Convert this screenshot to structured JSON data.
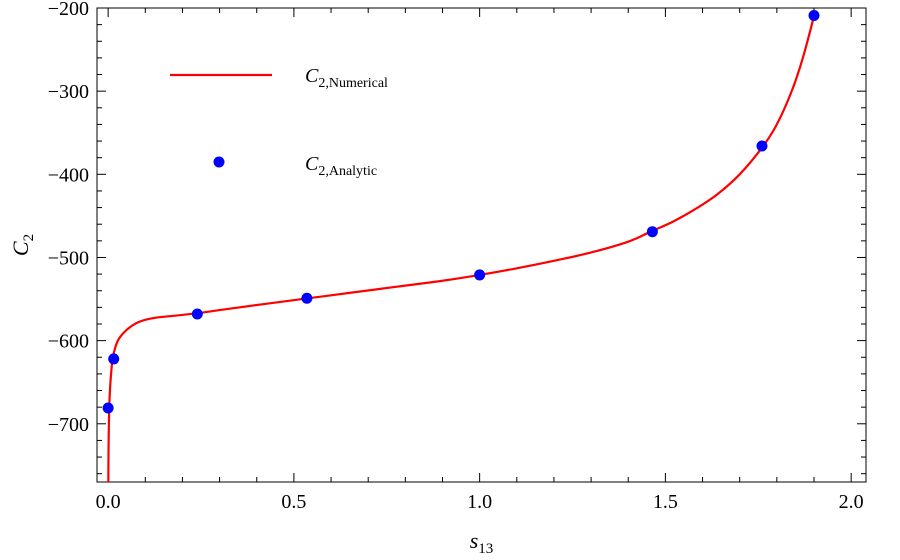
{
  "chart_data": {
    "type": "line",
    "xlabel": "s",
    "xlabel_sub": "13",
    "ylabel": "C",
    "ylabel_sub": "2",
    "xlim": [
      -0.03,
      2.04
    ],
    "ylim": [
      -770,
      -200
    ],
    "xticks": [
      0.0,
      0.5,
      1.0,
      1.5,
      2.0
    ],
    "xtick_labels": [
      "0.0",
      "0.5",
      "1.0",
      "1.5",
      "2.0"
    ],
    "yticks": [
      -700,
      -600,
      -500,
      -400,
      -300,
      -200
    ],
    "ytick_labels": [
      "−700",
      "−600",
      "−500",
      "−400",
      "−300",
      "−200"
    ],
    "grid": false,
    "legend_position": "top-left",
    "series": [
      {
        "name": "C2,Numerical",
        "legend_main": "C",
        "legend_sub": "2,Numerical",
        "style": "line",
        "color": "#ff0000",
        "x": [
          0.0005,
          0.001,
          0.002,
          0.004,
          0.007,
          0.012,
          0.02,
          0.03,
          0.05,
          0.08,
          0.12,
          0.18,
          0.24,
          0.32,
          0.42,
          0.54,
          0.66,
          0.78,
          0.9,
          1.0,
          1.1,
          1.2,
          1.3,
          1.4,
          1.46,
          1.52,
          1.58,
          1.64,
          1.7,
          1.76,
          1.8,
          1.84,
          1.87,
          1.9
        ],
        "y": [
          -770,
          -735,
          -700,
          -668,
          -645,
          -622,
          -607,
          -597,
          -587,
          -578,
          -573,
          -570,
          -567,
          -562,
          -556,
          -549,
          -542,
          -535,
          -528,
          -521,
          -513,
          -504,
          -494,
          -481,
          -469,
          -457,
          -442,
          -424,
          -400,
          -368,
          -340,
          -300,
          -260,
          -210
        ]
      },
      {
        "name": "C2,Analytic",
        "legend_main": "C",
        "legend_sub": "2,Analytic",
        "style": "scatter",
        "color": "#0000ff",
        "x": [
          0.0,
          0.015,
          0.24,
          0.535,
          1.0,
          1.465,
          1.76,
          1.9
        ],
        "y": [
          -681,
          -622,
          -568,
          -549,
          -521,
          -469,
          -366,
          -209
        ]
      }
    ]
  }
}
